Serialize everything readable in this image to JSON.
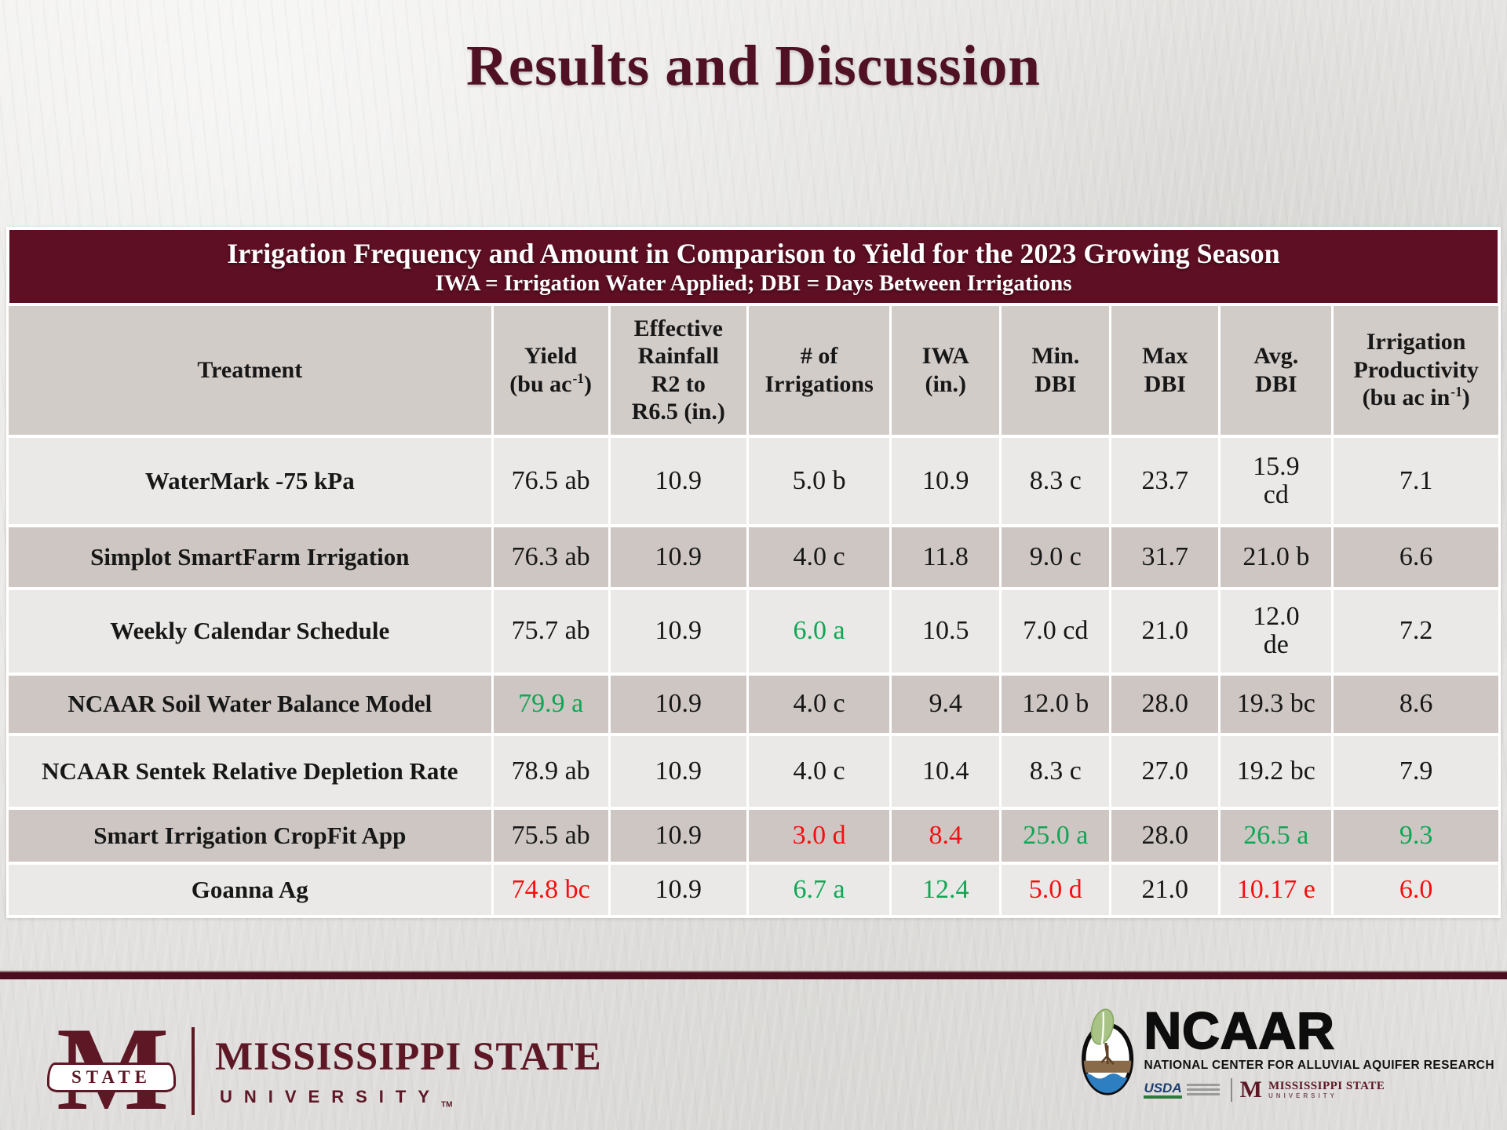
{
  "slide": {
    "title": "Results and Discussion"
  },
  "table": {
    "title": "Irrigation Frequency and Amount in Comparison to Yield for the 2023 Growing Season",
    "subtitle": "IWA = Irrigation Water Applied; DBI = Days Between Irrigations",
    "header": {
      "treatment": "Treatment",
      "yield_l1": "Yield",
      "yield_l2a": "(bu ac",
      "yield_sup": "-1",
      "yield_l2b": ")",
      "rain_l1": "Effective",
      "rain_l2": "Rainfall",
      "rain_l3": "R2 to",
      "rain_l4": "R6.5 (in.)",
      "num_l1": "# of",
      "num_l2": "Irrigations",
      "iwa_l1": "IWA",
      "iwa_l2": "(in.)",
      "min_l1": "Min.",
      "min_l2": "DBI",
      "max_l1": "Max",
      "max_l2": "DBI",
      "avg_l1": "Avg.",
      "avg_l2": "DBI",
      "prod_l1": "Irrigation",
      "prod_l2": "Productivity",
      "prod_l3a": "(bu ac in",
      "prod_sup": "-1",
      "prod_l3b": ")"
    },
    "value_colors": {
      "black": "#171717",
      "green": "#0fa655",
      "red": "#f50f0f"
    },
    "rows": [
      {
        "treatment": "WaterMark -75 kPa",
        "cells": [
          {
            "text": "76.5 ab"
          },
          {
            "text": "10.9"
          },
          {
            "text": "5.0 b"
          },
          {
            "text": "10.9"
          },
          {
            "text": "8.3 c"
          },
          {
            "text": "23.7"
          },
          {
            "text": "15.9\ncd"
          },
          {
            "text": "7.1"
          }
        ]
      },
      {
        "treatment": "Simplot SmartFarm Irrigation",
        "cells": [
          {
            "text": "76.3 ab"
          },
          {
            "text": "10.9"
          },
          {
            "text": "4.0 c"
          },
          {
            "text": "11.8"
          },
          {
            "text": "9.0 c"
          },
          {
            "text": "31.7"
          },
          {
            "text": "21.0 b"
          },
          {
            "text": "6.6"
          }
        ]
      },
      {
        "treatment": "Weekly Calendar Schedule",
        "cells": [
          {
            "text": "75.7 ab"
          },
          {
            "text": "10.9"
          },
          {
            "text": "6.0 a",
            "color": "green"
          },
          {
            "text": "10.5"
          },
          {
            "text": "7.0 cd"
          },
          {
            "text": "21.0"
          },
          {
            "text": "12.0\nde"
          },
          {
            "text": "7.2"
          }
        ]
      },
      {
        "treatment": "NCAAR Soil Water Balance Model",
        "cells": [
          {
            "text": "79.9 a",
            "color": "green"
          },
          {
            "text": "10.9"
          },
          {
            "text": "4.0 c"
          },
          {
            "text": "9.4"
          },
          {
            "text": "12.0 b"
          },
          {
            "text": "28.0"
          },
          {
            "text": "19.3 bc"
          },
          {
            "text": "8.6"
          }
        ]
      },
      {
        "treatment": "NCAAR Sentek Relative Depletion Rate",
        "cells": [
          {
            "text": "78.9 ab"
          },
          {
            "text": "10.9"
          },
          {
            "text": "4.0 c"
          },
          {
            "text": "10.4"
          },
          {
            "text": "8.3 c"
          },
          {
            "text": "27.0"
          },
          {
            "text": "19.2 bc"
          },
          {
            "text": "7.9"
          }
        ]
      },
      {
        "treatment": "Smart Irrigation CropFit App",
        "cells": [
          {
            "text": "75.5 ab"
          },
          {
            "text": "10.9"
          },
          {
            "text": "3.0 d",
            "color": "red"
          },
          {
            "text": "8.4",
            "color": "red"
          },
          {
            "text": "25.0 a",
            "color": "green"
          },
          {
            "text": "28.0"
          },
          {
            "text": "26.5 a",
            "color": "green"
          },
          {
            "text": "9.3",
            "color": "green"
          }
        ]
      },
      {
        "treatment": "Goanna Ag",
        "cells": [
          {
            "text": "74.8 bc",
            "color": "red"
          },
          {
            "text": "10.9"
          },
          {
            "text": "6.7 a",
            "color": "green"
          },
          {
            "text": "12.4",
            "color": "green"
          },
          {
            "text": "5.0 d",
            "color": "red"
          },
          {
            "text": "21.0"
          },
          {
            "text": "10.17 e",
            "color": "red"
          },
          {
            "text": "6.0",
            "color": "red"
          }
        ]
      }
    ]
  },
  "footer": {
    "msu": {
      "monogram": "M",
      "banner": "STATE",
      "name": "MISSISSIPPI STATE",
      "sub": "UNIVERSITY",
      "tm": "TM"
    },
    "ncaar": {
      "acronym": "NCAAR",
      "full_name": "NATIONAL CENTER FOR ALLUVIAL AQUIFER RESEARCH",
      "usda": "USDA",
      "partner_name": "MISSISSIPPI STATE",
      "partner_sub": "UNIVERSITY"
    }
  },
  "colors": {
    "maroon": "#5d1725",
    "table_bar_maroon": "#5e0f23",
    "title_maroon": "#4f1123",
    "band_maroon": "#4c0d1e"
  }
}
